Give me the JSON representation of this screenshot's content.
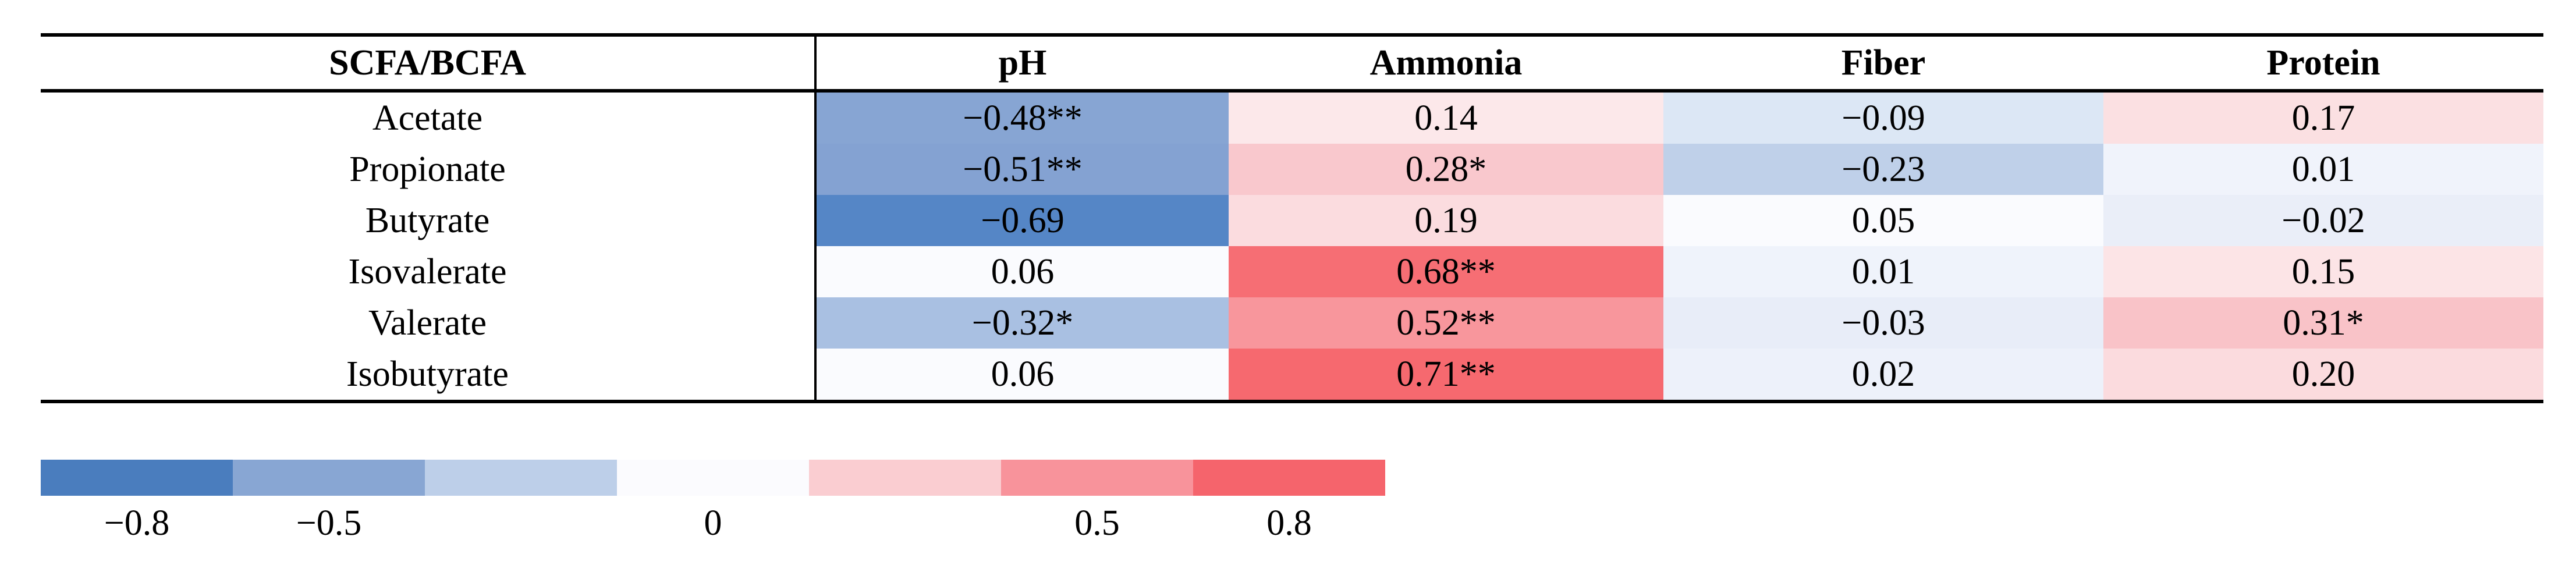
{
  "table": {
    "header": {
      "col0": "SCFA/BCFA",
      "col1": "pH",
      "col2": "Ammonia",
      "col3": "Fiber",
      "col4": "Protein"
    },
    "rows": [
      {
        "label": "Acetate",
        "cells": [
          {
            "text": "−0.48**",
            "bg": "#87A5D3"
          },
          {
            "text": "0.14",
            "bg": "#FCE8EA"
          },
          {
            "text": "−0.09",
            "bg": "#DCE7F5"
          },
          {
            "text": "0.17",
            "bg": "#FBE0E2"
          }
        ]
      },
      {
        "label": "Propionate",
        "cells": [
          {
            "text": "−0.51**",
            "bg": "#84A2D2"
          },
          {
            "text": "0.28*",
            "bg": "#F9C8CD"
          },
          {
            "text": "−0.23",
            "bg": "#BFD0E9"
          },
          {
            "text": "0.01",
            "bg": "#F0F3FB"
          }
        ]
      },
      {
        "label": "Butyrate",
        "cells": [
          {
            "text": "−0.69",
            "bg": "#5586C6"
          },
          {
            "text": "0.19",
            "bg": "#FBDCDF"
          },
          {
            "text": "0.05",
            "bg": "#FAFBFE"
          },
          {
            "text": "−0.02",
            "bg": "#EAEEF8"
          }
        ]
      },
      {
        "label": "Isovalerate",
        "cells": [
          {
            "text": "0.06",
            "bg": "#FAFBFE"
          },
          {
            "text": "0.68**",
            "bg": "#F66E74"
          },
          {
            "text": "0.01",
            "bg": "#EFF3FB"
          },
          {
            "text": "0.15",
            "bg": "#FCE4E6"
          }
        ]
      },
      {
        "label": "Valerate",
        "cells": [
          {
            "text": "−0.32*",
            "bg": "#A9C0E2"
          },
          {
            "text": "0.52**",
            "bg": "#F8969C"
          },
          {
            "text": "−0.03",
            "bg": "#E8EDF8"
          },
          {
            "text": "0.31*",
            "bg": "#F9C3C8"
          }
        ]
      },
      {
        "label": "Isobutyrate",
        "cells": [
          {
            "text": "0.06",
            "bg": "#FAFBFE"
          },
          {
            "text": "0.71**",
            "bg": "#F6696F"
          },
          {
            "text": "0.02",
            "bg": "#EDF1FA"
          },
          {
            "text": "0.20",
            "bg": "#FBDBDE"
          }
        ]
      }
    ]
  },
  "legend": {
    "block_colors": [
      "#4A7DBE",
      "#88A6D3",
      "#BDCFE9",
      "#FBFBFE",
      "#FACDD1",
      "#F8939B",
      "#F5646C"
    ],
    "tick_labels": [
      {
        "text": "−0.8"
      },
      {
        "text": "−0.5"
      },
      {
        "text": "0"
      },
      {
        "text": "0.5"
      },
      {
        "text": "0.8"
      }
    ]
  },
  "chart_data": {
    "type": "heatmap",
    "rows": [
      "Acetate",
      "Propionate",
      "Butyrate",
      "Isovalerate",
      "Valerate",
      "Isobutyrate"
    ],
    "columns": [
      "pH",
      "Ammonia",
      "Fiber",
      "Protein"
    ],
    "row_header_label": "SCFA/BCFA",
    "values": [
      [
        -0.48,
        0.14,
        -0.09,
        0.17
      ],
      [
        -0.51,
        0.28,
        -0.23,
        0.01
      ],
      [
        -0.69,
        0.19,
        0.05,
        -0.02
      ],
      [
        0.06,
        0.68,
        0.01,
        0.15
      ],
      [
        -0.32,
        0.52,
        -0.03,
        0.31
      ],
      [
        0.06,
        0.71,
        0.02,
        0.2
      ]
    ],
    "significance_marks": [
      [
        "**",
        "",
        "",
        ""
      ],
      [
        "**",
        "*",
        "",
        ""
      ],
      [
        "",
        "",
        "",
        ""
      ],
      [
        "",
        "**",
        "",
        ""
      ],
      [
        "*",
        "**",
        "",
        "*"
      ],
      [
        "",
        "**",
        "",
        ""
      ]
    ],
    "colorscale": {
      "ticks": [
        -0.8,
        -0.5,
        0,
        0.5,
        0.8
      ],
      "negative_color": "#4A7DBE",
      "neutral_color": "#FBFBFE",
      "positive_color": "#F5646C"
    },
    "legend_position": "bottom-left",
    "grid": false
  }
}
